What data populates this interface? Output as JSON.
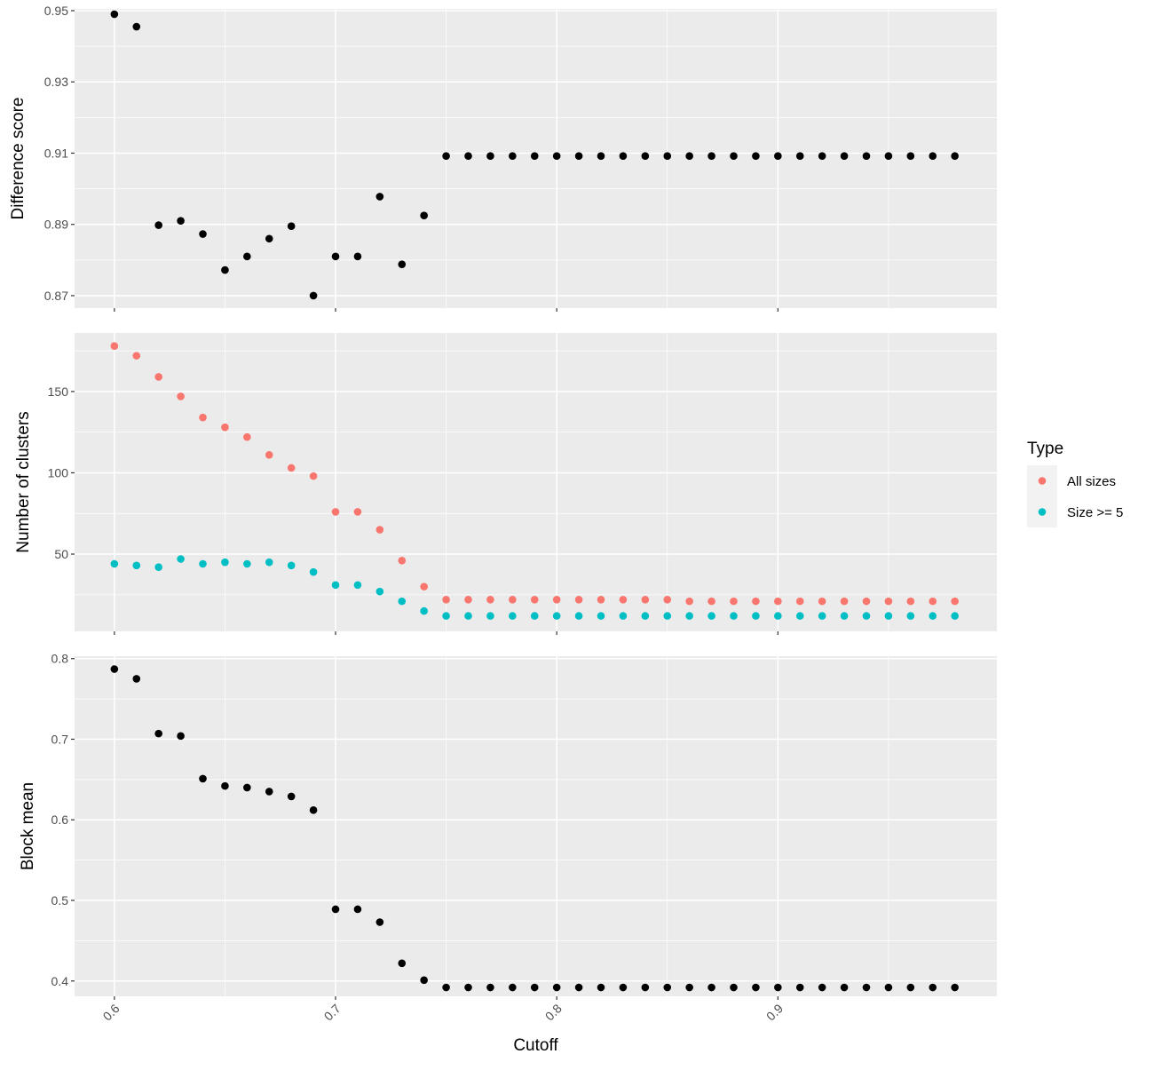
{
  "chart_data": {
    "type": "scatter",
    "xlabel": "Cutoff",
    "x_ticks": [
      0.6,
      0.7,
      0.8,
      0.9
    ],
    "xlim": [
      0.582,
      0.999
    ],
    "x": [
      0.6,
      0.61,
      0.62,
      0.63,
      0.64,
      0.65,
      0.66,
      0.67,
      0.68,
      0.69,
      0.7,
      0.71,
      0.72,
      0.73,
      0.74,
      0.75,
      0.76,
      0.77,
      0.78,
      0.79,
      0.8,
      0.81,
      0.82,
      0.83,
      0.84,
      0.85,
      0.86,
      0.87,
      0.88,
      0.89,
      0.9,
      0.91,
      0.92,
      0.93,
      0.94,
      0.95,
      0.96,
      0.97,
      0.98
    ],
    "legend": {
      "title": "Type",
      "placement": "right"
    },
    "panels": [
      {
        "ylabel": "Difference score",
        "ylim": [
          0.8665,
          0.9505
        ],
        "y_ticks": [
          0.87,
          0.89,
          0.91,
          0.93,
          0.95
        ],
        "series": [
          {
            "color": "#000000",
            "values": [
              0.949,
              0.9455,
              0.8898,
              0.891,
              0.8873,
              0.8772,
              0.881,
              0.886,
              0.8895,
              0.87,
              0.881,
              0.881,
              0.8978,
              0.8788,
              0.8925,
              0.9092,
              0.9092,
              0.9092,
              0.9092,
              0.9092,
              0.9092,
              0.9092,
              0.9092,
              0.9092,
              0.9092,
              0.9092,
              0.9092,
              0.9092,
              0.9092,
              0.9092,
              0.9092,
              0.9092,
              0.9092,
              0.9092,
              0.9092,
              0.9092,
              0.9092,
              0.9092,
              0.9092
            ]
          }
        ]
      },
      {
        "ylabel": "Number of clusters",
        "ylim": [
          2.5,
          186
        ],
        "y_ticks": [
          50,
          100,
          150
        ],
        "series": [
          {
            "name": "All sizes",
            "color": "#F8766D",
            "values": [
              178,
              172,
              159,
              147,
              134,
              128,
              122,
              111,
              103,
              98,
              76,
              76,
              65,
              46,
              30,
              22,
              22,
              22,
              22,
              22,
              22,
              22,
              22,
              22,
              22,
              22,
              21,
              21,
              21,
              21,
              21,
              21,
              21,
              21,
              21,
              21,
              21,
              21,
              21
            ]
          },
          {
            "name": "Size >= 5",
            "color": "#00BFC4",
            "values": [
              44,
              43,
              42,
              47,
              44,
              45,
              44,
              45,
              43,
              39,
              31,
              31,
              27,
              21,
              15,
              12,
              12,
              12,
              12,
              12,
              12,
              12,
              12,
              12,
              12,
              12,
              12,
              12,
              12,
              12,
              12,
              12,
              12,
              12,
              12,
              12,
              12,
              12,
              12
            ]
          }
        ]
      },
      {
        "ylabel": "Block mean",
        "ylim": [
          0.381,
          0.803
        ],
        "y_ticks": [
          0.4,
          0.5,
          0.6,
          0.7,
          0.8
        ],
        "series": [
          {
            "color": "#000000",
            "values": [
              0.787,
              0.775,
              0.707,
              0.704,
              0.651,
              0.642,
              0.64,
              0.635,
              0.629,
              0.612,
              0.489,
              0.489,
              0.473,
              0.422,
              0.401,
              0.392,
              0.392,
              0.392,
              0.392,
              0.392,
              0.392,
              0.392,
              0.392,
              0.392,
              0.392,
              0.392,
              0.392,
              0.392,
              0.392,
              0.392,
              0.392,
              0.392,
              0.392,
              0.392,
              0.392,
              0.392,
              0.392,
              0.392,
              0.392
            ]
          }
        ]
      }
    ]
  }
}
